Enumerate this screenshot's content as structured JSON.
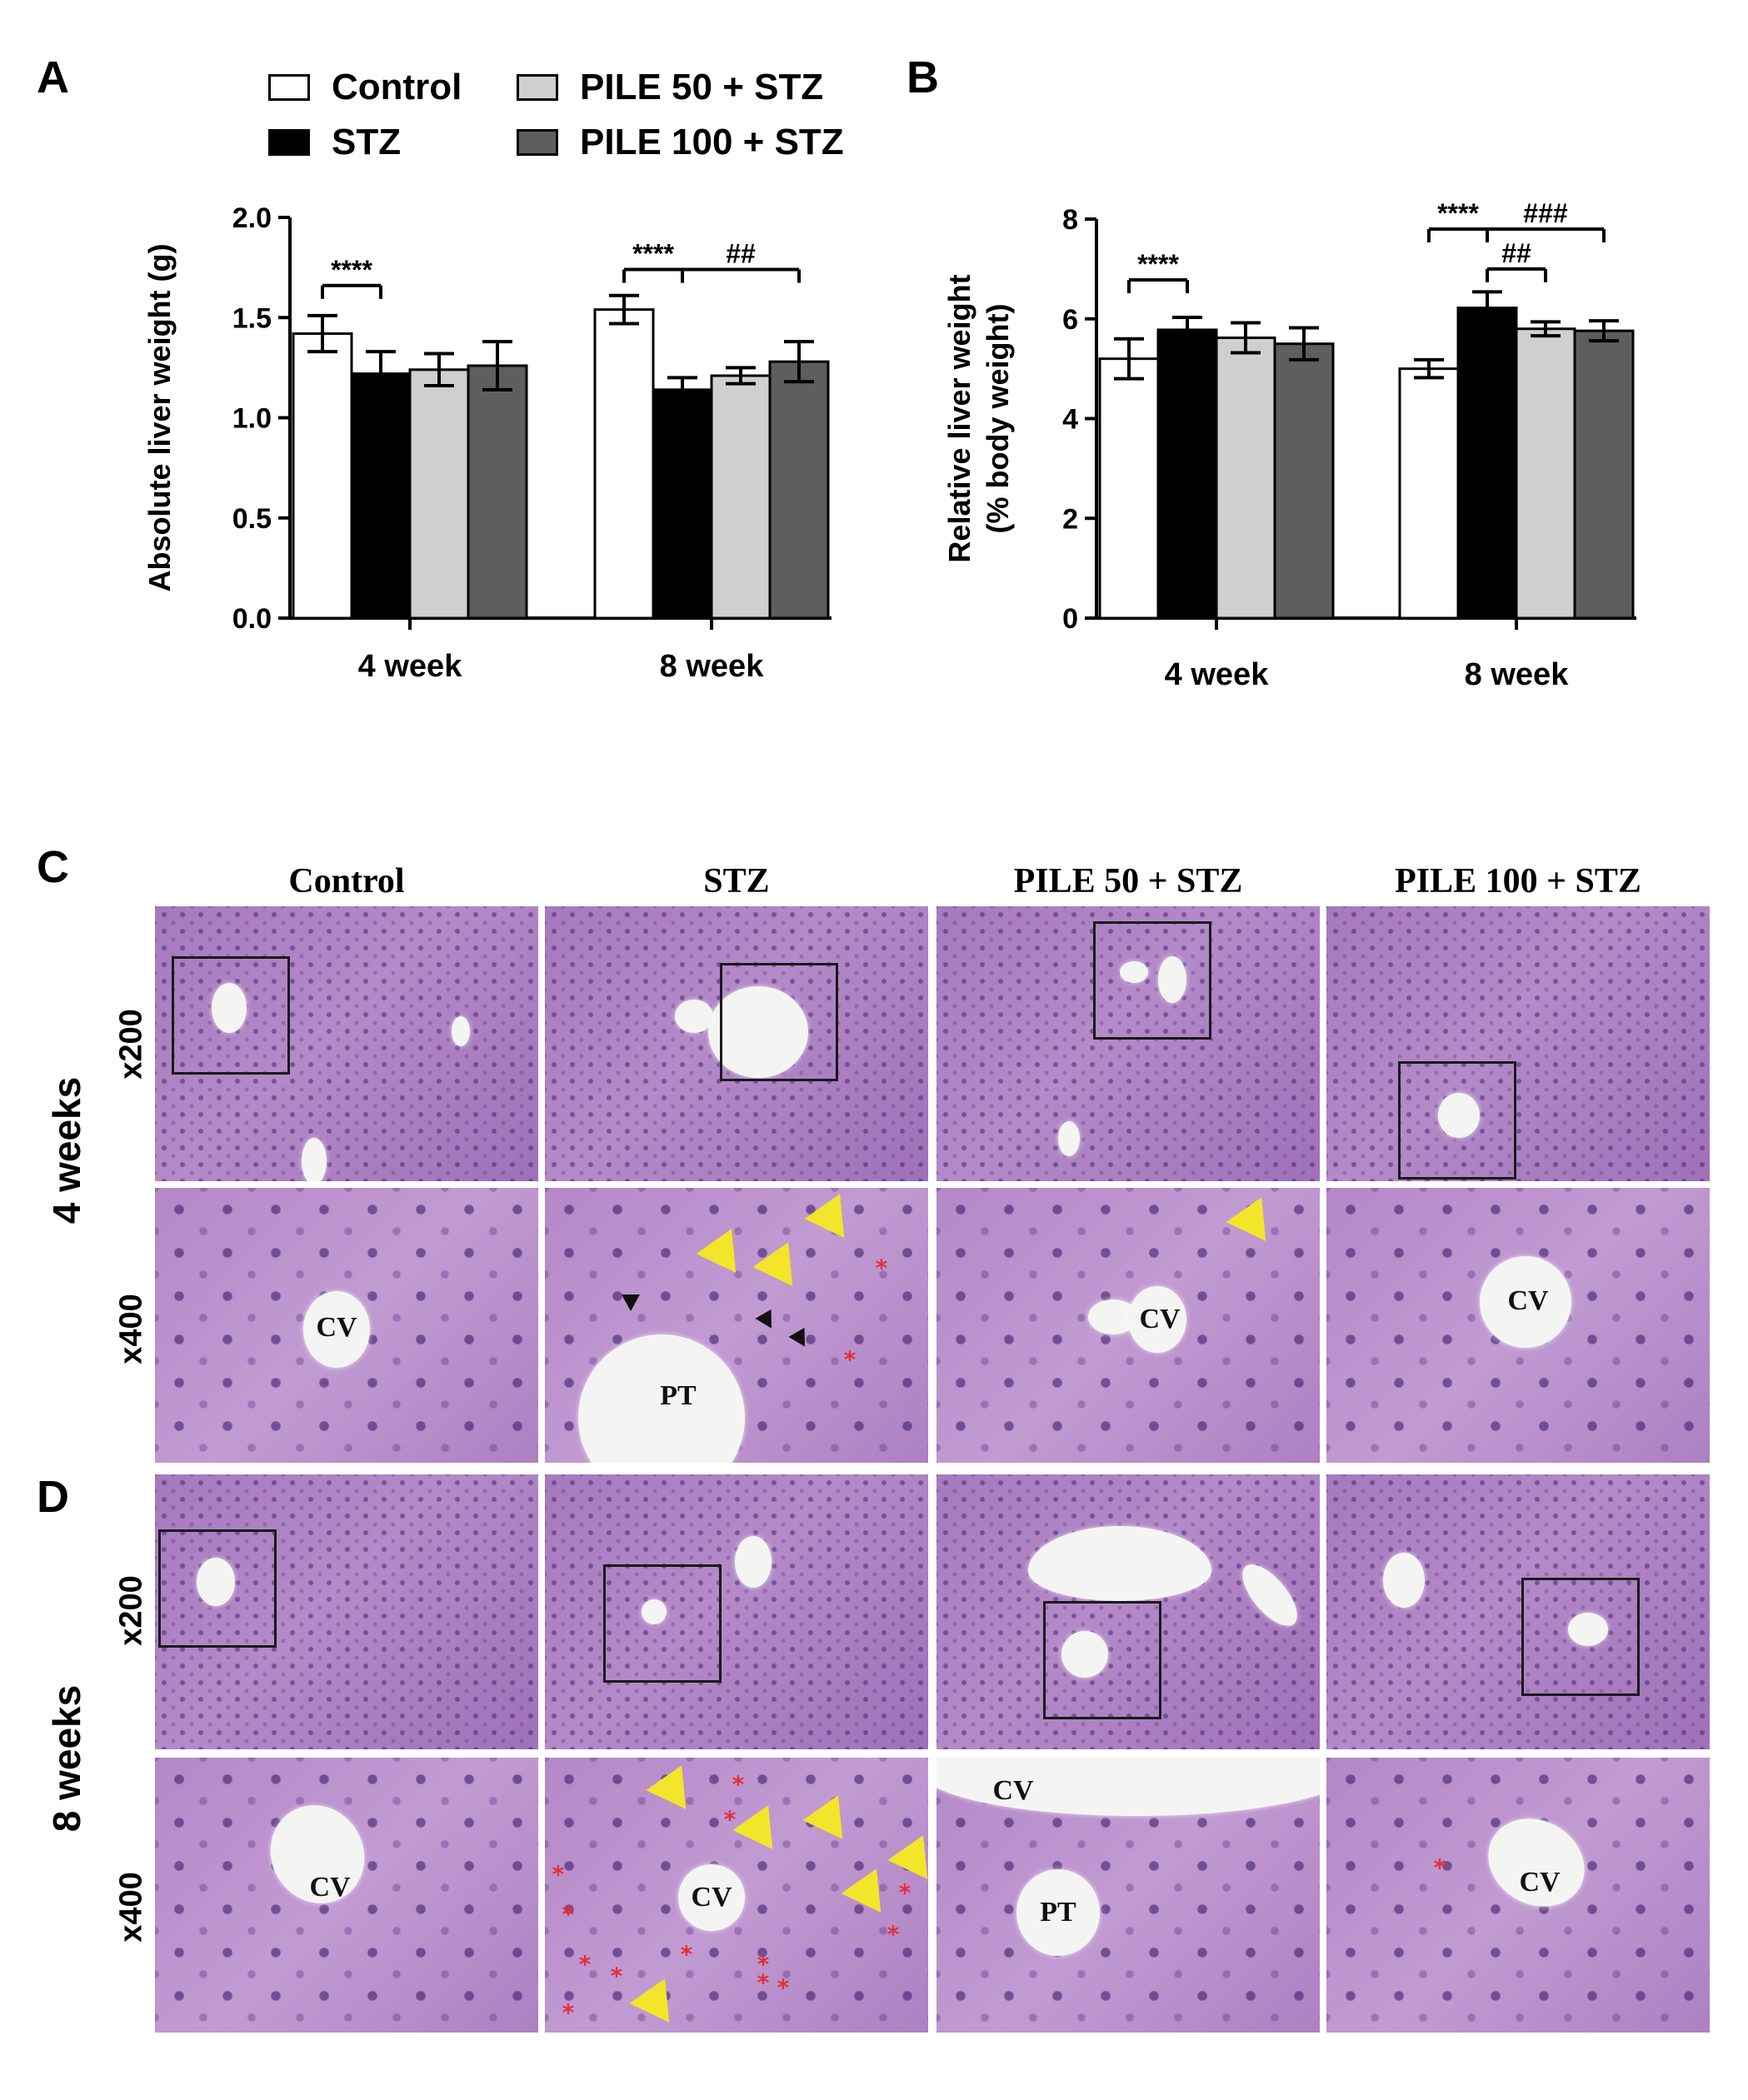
{
  "panels": {
    "A": "A",
    "B": "B",
    "C": "C",
    "D": "D"
  },
  "legend": [
    {
      "name": "Control",
      "color": "#ffffff"
    },
    {
      "name": "STZ",
      "color": "#000000"
    },
    {
      "name": "PILE 50 + STZ",
      "color": "#cfcfcf"
    },
    {
      "name": "PILE 100 + STZ",
      "color": "#5e5e5e"
    }
  ],
  "chart_data": [
    {
      "panel": "A",
      "type": "bar",
      "categories": [
        "4 week",
        "8 week"
      ],
      "ylabel": "Absolute liver weight (g)",
      "ylim": [
        0,
        2.0
      ],
      "yticks": [
        "0.0",
        "0.5",
        "1.0",
        "1.5",
        "2.0"
      ],
      "grid": false,
      "series": [
        {
          "name": "Control",
          "values": [
            1.42,
            1.54
          ],
          "errors": [
            0.09,
            0.07
          ]
        },
        {
          "name": "STZ",
          "values": [
            1.22,
            1.14
          ],
          "errors": [
            0.11,
            0.06
          ]
        },
        {
          "name": "PILE 50 + STZ",
          "values": [
            1.24,
            1.21
          ],
          "errors": [
            0.08,
            0.04
          ]
        },
        {
          "name": "PILE 100 + STZ",
          "values": [
            1.26,
            1.28
          ],
          "errors": [
            0.12,
            0.1
          ]
        }
      ],
      "annotations": [
        {
          "text": "****",
          "group": 0,
          "from": 0,
          "to": [
            1
          ],
          "y": 1.66
        },
        {
          "text": "****",
          "group": 1,
          "from": 0,
          "to": [
            1
          ],
          "y": 1.74
        },
        {
          "text": "##",
          "group": 1,
          "from": 1,
          "to": [
            3
          ],
          "y": 1.74
        }
      ]
    },
    {
      "panel": "B",
      "type": "bar",
      "categories": [
        "4 week",
        "8 week"
      ],
      "ylabel": "Relative liver weight",
      "ylabel2": "(% body weight)",
      "ylim": [
        0,
        8
      ],
      "yticks": [
        "0",
        "2",
        "4",
        "6",
        "8"
      ],
      "grid": false,
      "series": [
        {
          "name": "Control",
          "values": [
            5.2,
            5.0
          ],
          "errors": [
            0.4,
            0.18
          ]
        },
        {
          "name": "STZ",
          "values": [
            5.78,
            6.22
          ],
          "errors": [
            0.25,
            0.32
          ]
        },
        {
          "name": "PILE 50 + STZ",
          "values": [
            5.62,
            5.8
          ],
          "errors": [
            0.3,
            0.14
          ]
        },
        {
          "name": "PILE 100 + STZ",
          "values": [
            5.5,
            5.76
          ],
          "errors": [
            0.32,
            0.2
          ]
        }
      ],
      "annotations": [
        {
          "text": "****",
          "group": 0,
          "from": 0,
          "to": [
            1
          ],
          "y": 6.78
        },
        {
          "text": "****",
          "group": 1,
          "from": 0,
          "to": [
            1
          ],
          "y": 7.8
        },
        {
          "text": "###",
          "group": 1,
          "from": 1,
          "to": [
            3
          ],
          "y": 7.8
        },
        {
          "text": "##",
          "group": 1,
          "from": 1,
          "to": [
            2
          ],
          "y": 7.0
        }
      ]
    }
  ],
  "histology": {
    "columns": [
      "Control",
      "STZ",
      "PILE  50 + STZ",
      "PILE  100 + STZ"
    ],
    "periods": [
      "4 weeks",
      "8 weeks"
    ],
    "magnifications": [
      "x200",
      "x400"
    ],
    "labels": {
      "cv": "CV",
      "pt": "PT"
    }
  }
}
